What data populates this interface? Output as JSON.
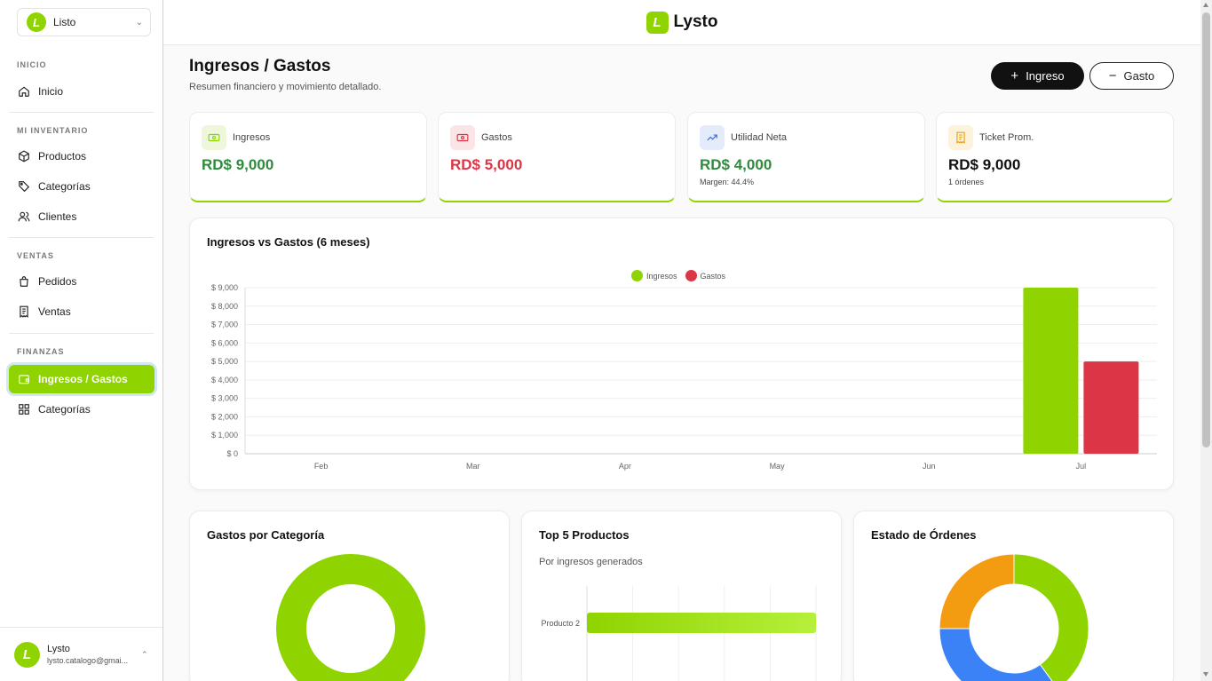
{
  "store_selector": {
    "logo": "L",
    "name": "Listo"
  },
  "brand": {
    "mark": "L",
    "name": "Lysto"
  },
  "sidebar": {
    "sections": [
      {
        "title": "INICIO",
        "items": [
          {
            "label": "Inicio",
            "icon": "home-icon"
          }
        ]
      },
      {
        "title": "MI INVENTARIO",
        "items": [
          {
            "label": "Productos",
            "icon": "box-icon"
          },
          {
            "label": "Categorías",
            "icon": "tag-icon"
          },
          {
            "label": "Clientes",
            "icon": "users-icon"
          }
        ]
      },
      {
        "title": "VENTAS",
        "items": [
          {
            "label": "Pedidos",
            "icon": "shopping-bag-icon"
          },
          {
            "label": "Ventas",
            "icon": "receipt-icon"
          }
        ]
      },
      {
        "title": "FINANZAS",
        "items": [
          {
            "label": "Ingresos / Gastos",
            "icon": "wallet-icon",
            "active": true
          },
          {
            "label": "Categorías",
            "icon": "grid-icon"
          }
        ]
      }
    ]
  },
  "user": {
    "avatar": "L",
    "name": "Lysto",
    "email": "lysto.catalogo@gmai..."
  },
  "page": {
    "title": "Ingresos / Gastos",
    "subtitle": "Resumen financiero y movimiento detallado.",
    "btn_ingreso": "Ingreso",
    "btn_gasto": "Gasto",
    "btn_ingreso_symbol": "+",
    "btn_gasto_symbol": "−"
  },
  "kpis": [
    {
      "label": "Ingresos",
      "value": "RD$ 9,000",
      "note": "",
      "color": "#2e8b3d",
      "icon": "money-icon",
      "icon_bg": "#eef7dc",
      "icon_color": "#8fd400"
    },
    {
      "label": "Gastos",
      "value": "RD$ 5,000",
      "note": "",
      "color": "#dc3545",
      "icon": "money-icon",
      "icon_bg": "#fbe4e6",
      "icon_color": "#dc3545"
    },
    {
      "label": "Utilidad Neta",
      "value": "RD$ 4,000",
      "note": "Margen: 44.4%",
      "color": "#2e8b3d",
      "icon": "trending-up-icon",
      "icon_bg": "#e4ecfb",
      "icon_color": "#3b6fd8"
    },
    {
      "label": "Ticket Prom.",
      "value": "RD$ 9,000",
      "note": "1 órdenes",
      "color": "#111111",
      "icon": "receipt-icon",
      "icon_bg": "#fdf3dc",
      "icon_color": "#e8a317"
    }
  ],
  "charts": {
    "main_title": "Ingresos vs Gastos (6 meses)",
    "gastos_title": "Gastos por Categoría",
    "top_title": "Top 5 Productos",
    "top_subtitle": "Por ingresos generados",
    "estado_title": "Estado de Órdenes"
  },
  "chart_data": [
    {
      "type": "bar",
      "title": "Ingresos vs Gastos (6 meses)",
      "categories": [
        "Feb",
        "Mar",
        "Apr",
        "May",
        "Jun",
        "Jul"
      ],
      "series": [
        {
          "name": "Ingresos",
          "values": [
            0,
            0,
            0,
            0,
            0,
            9000
          ],
          "color": "#8fd400"
        },
        {
          "name": "Gastos",
          "values": [
            0,
            0,
            0,
            0,
            0,
            5000
          ],
          "color": "#dc3545"
        }
      ],
      "yticks": [
        "$ 0",
        "$ 1,000",
        "$ 2,000",
        "$ 3,000",
        "$ 4,000",
        "$ 5,000",
        "$ 6,000",
        "$ 7,000",
        "$ 8,000",
        "$ 9,000"
      ],
      "ylim": [
        0,
        9000
      ],
      "grid": true,
      "legend": "top-center"
    },
    {
      "type": "pie",
      "title": "Gastos por Categoría",
      "slices": [
        {
          "value": 100,
          "color": "#8fd400"
        }
      ]
    },
    {
      "type": "bar",
      "orientation": "horizontal",
      "title": "Top 5 Productos",
      "categories": [
        "Producto 2"
      ],
      "values": [
        9000
      ],
      "colors": [
        "#8fd400",
        "#b6f03c"
      ]
    },
    {
      "type": "pie",
      "title": "Estado de Órdenes",
      "slices": [
        {
          "value": 40,
          "color": "#8fd400"
        },
        {
          "value": 35,
          "color": "#3b82f6"
        },
        {
          "value": 25,
          "color": "#f39c12"
        }
      ]
    }
  ]
}
